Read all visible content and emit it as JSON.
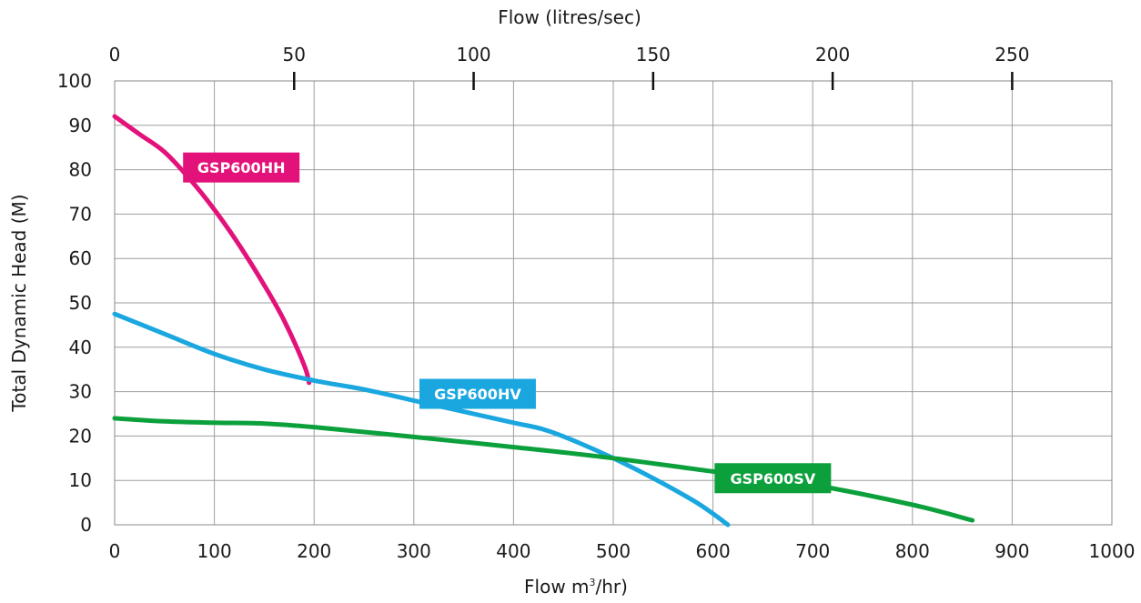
{
  "chart_data": {
    "type": "line",
    "title": "",
    "xlabel_parts": {
      "prefix": "Flow m",
      "superscript": "3",
      "suffix": "/hr)"
    },
    "x2label": "Flow (litres/sec)",
    "ylabel": "Total Dynamic Head (M)",
    "xlim": [
      0,
      1000
    ],
    "ylim": [
      0,
      100
    ],
    "x_ticks": [
      0,
      100,
      200,
      300,
      400,
      500,
      600,
      700,
      800,
      900,
      1000
    ],
    "y_ticks": [
      0,
      10,
      20,
      30,
      40,
      50,
      60,
      70,
      80,
      90,
      100
    ],
    "x2_ticks": [
      0,
      50,
      100,
      150,
      200,
      250
    ],
    "x2_conversion": 3.6,
    "grid": true,
    "series": [
      {
        "name": "GSP600HH",
        "color": "#e2127a",
        "x": [
          0,
          25,
          50,
          75,
          100,
          125,
          150,
          170,
          190,
          195
        ],
        "y": [
          92,
          88,
          84,
          78,
          71,
          63,
          54,
          46,
          36,
          32
        ]
      },
      {
        "name": "GSP600HV",
        "color": "#1aa7e0",
        "x": [
          0,
          50,
          100,
          150,
          200,
          250,
          300,
          350,
          400,
          430,
          460,
          500,
          540,
          580,
          600,
          615
        ],
        "y": [
          47.5,
          43,
          38.5,
          35,
          32.5,
          30.5,
          28,
          25.5,
          23,
          21.5,
          19,
          15,
          10.5,
          5.5,
          2.5,
          0
        ]
      },
      {
        "name": "GSP600SV",
        "color": "#0ca03c",
        "x": [
          0,
          50,
          100,
          150,
          200,
          300,
          400,
          500,
          600,
          700,
          800,
          860
        ],
        "y": [
          24,
          23.3,
          23,
          22.8,
          22,
          19.8,
          17.5,
          15,
          12,
          9,
          4.5,
          1
        ]
      }
    ],
    "labels": [
      {
        "text": "GSP600HH",
        "color": "#e2127a",
        "x": 127,
        "y": 80.5
      },
      {
        "text": "GSP600HV",
        "color": "#1aa7e0",
        "x": 364,
        "y": 29.5
      },
      {
        "text": "GSP600SV",
        "color": "#0ca03c",
        "x": 660,
        "y": 10.5
      }
    ]
  }
}
